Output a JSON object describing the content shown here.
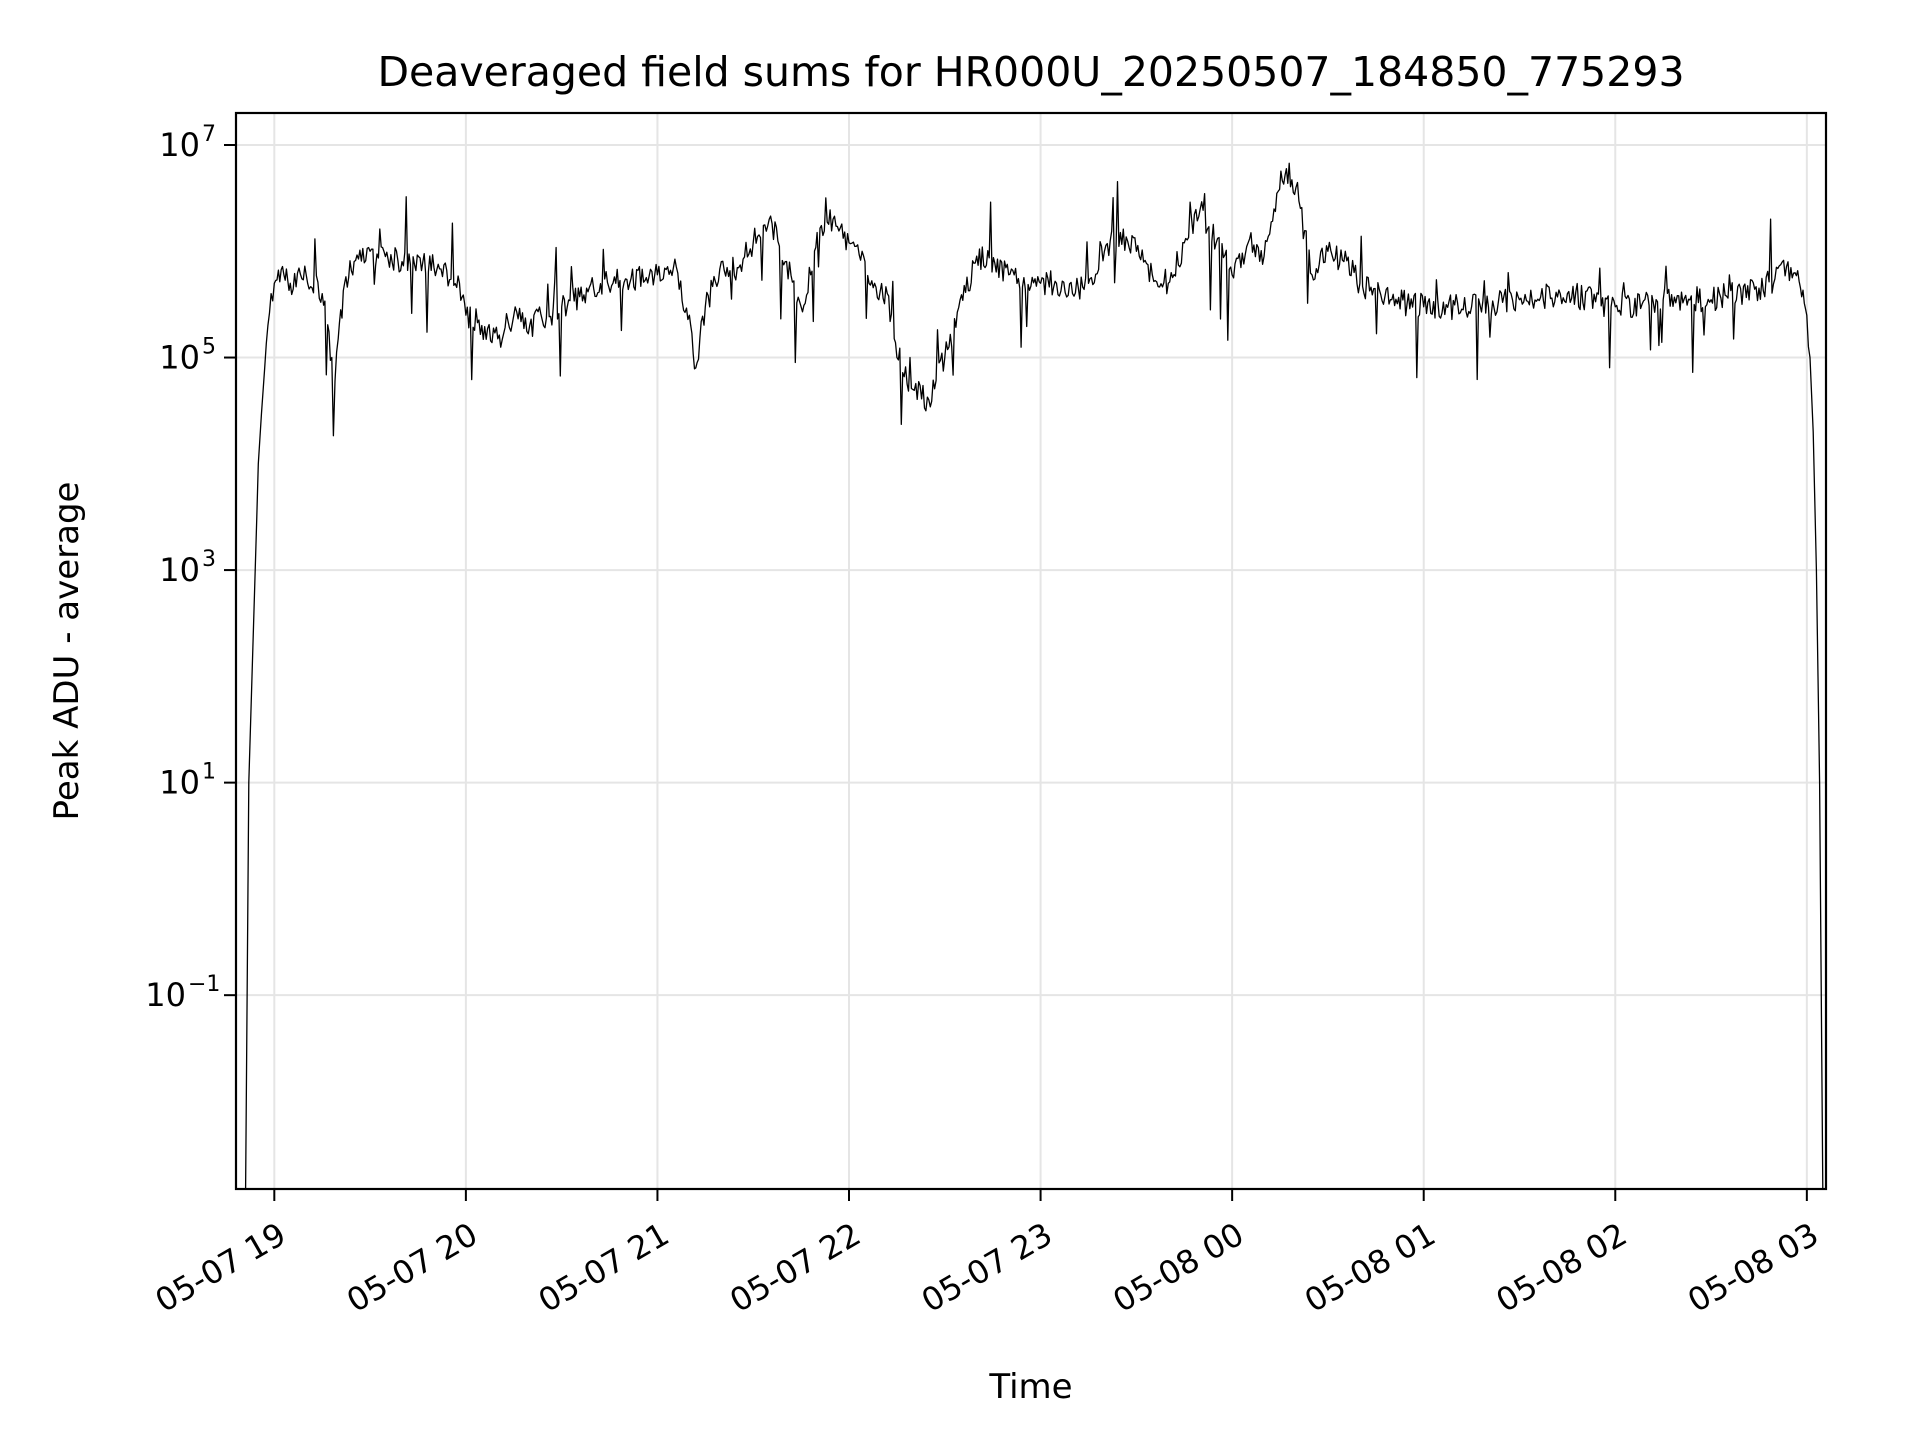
{
  "chart_data": {
    "type": "line",
    "title": "Deaveraged field sums for HR000U_20250507_184850_775293",
    "xlabel": "Time",
    "ylabel": "Peak ADU - average",
    "yscale": "log",
    "ylim": [
      0.0015,
      20000000
    ],
    "xlim": [
      "2025-05-07 18:48",
      "2025-05-08 03:06"
    ],
    "grid": true,
    "x_ticks": [
      {
        "t": "2025-05-07 19:00",
        "label": "05-07 19"
      },
      {
        "t": "2025-05-07 20:00",
        "label": "05-07 20"
      },
      {
        "t": "2025-05-07 21:00",
        "label": "05-07 21"
      },
      {
        "t": "2025-05-07 22:00",
        "label": "05-07 22"
      },
      {
        "t": "2025-05-07 23:00",
        "label": "05-07 23"
      },
      {
        "t": "2025-05-08 00:00",
        "label": "05-08 00"
      },
      {
        "t": "2025-05-08 01:00",
        "label": "05-08 01"
      },
      {
        "t": "2025-05-08 02:00",
        "label": "05-08 02"
      },
      {
        "t": "2025-05-08 03:00",
        "label": "05-08 03"
      }
    ],
    "y_ticks": [
      {
        "value": 0.1,
        "base": "10",
        "exp": "−1"
      },
      {
        "value": 10,
        "base": "10",
        "exp": "1"
      },
      {
        "value": 1000,
        "base": "10",
        "exp": "3"
      },
      {
        "value": 100000,
        "base": "10",
        "exp": "5"
      },
      {
        "value": 10000000,
        "base": "10",
        "exp": "7"
      }
    ],
    "series": [
      {
        "color": "#000000",
        "x": [
          "2025-05-07 18:51",
          "2025-05-07 18:52",
          "2025-05-07 18:53",
          "2025-05-07 18:54",
          "2025-05-07 18:55",
          "2025-05-07 18:56",
          "2025-05-07 18:57",
          "2025-05-07 18:58",
          "2025-05-07 18:59",
          "2025-05-07 19:00",
          "2025-05-07 19:03",
          "2025-05-07 19:05",
          "2025-05-07 19:10",
          "2025-05-07 19:15",
          "2025-05-07 19:18",
          "2025-05-07 19:19",
          "2025-05-07 19:20",
          "2025-05-07 19:22",
          "2025-05-07 19:25",
          "2025-05-07 19:30",
          "2025-05-07 19:40",
          "2025-05-07 19:50",
          "2025-05-07 19:58",
          "2025-05-07 20:00",
          "2025-05-07 20:05",
          "2025-05-07 20:10",
          "2025-05-07 20:15",
          "2025-05-07 20:20",
          "2025-05-07 20:30",
          "2025-05-07 20:40",
          "2025-05-07 20:50",
          "2025-05-07 21:00",
          "2025-05-07 21:05",
          "2025-05-07 21:10",
          "2025-05-07 21:12",
          "2025-05-07 21:15",
          "2025-05-07 21:20",
          "2025-05-07 21:25",
          "2025-05-07 21:30",
          "2025-05-07 21:35",
          "2025-05-07 21:40",
          "2025-05-07 21:45",
          "2025-05-07 21:48",
          "2025-05-07 21:50",
          "2025-05-07 21:55",
          "2025-05-07 22:00",
          "2025-05-07 22:05",
          "2025-05-07 22:08",
          "2025-05-07 22:12",
          "2025-05-07 22:15",
          "2025-05-07 22:20",
          "2025-05-07 22:25",
          "2025-05-07 22:30",
          "2025-05-07 22:40",
          "2025-05-07 22:50",
          "2025-05-07 23:00",
          "2025-05-07 23:05",
          "2025-05-07 23:10",
          "2025-05-07 23:15",
          "2025-05-07 23:20",
          "2025-05-07 23:25",
          "2025-05-07 23:30",
          "2025-05-07 23:35",
          "2025-05-07 23:40",
          "2025-05-07 23:45",
          "2025-05-07 23:50",
          "2025-05-07 23:55",
          "2025-05-08 00:00",
          "2025-05-08 00:05",
          "2025-05-08 00:10",
          "2025-05-08 00:14",
          "2025-05-08 00:17",
          "2025-05-08 00:20",
          "2025-05-08 00:25",
          "2025-05-08 00:30",
          "2025-05-08 00:35",
          "2025-05-08 00:40",
          "2025-05-08 00:50",
          "2025-05-08 01:00",
          "2025-05-08 01:15",
          "2025-05-08 01:30",
          "2025-05-08 01:45",
          "2025-05-08 02:00",
          "2025-05-08 02:15",
          "2025-05-08 02:30",
          "2025-05-08 02:45",
          "2025-05-08 02:50",
          "2025-05-08 02:55",
          "2025-05-08 02:58",
          "2025-05-08 03:00",
          "2025-05-08 03:01",
          "2025-05-08 03:02",
          "2025-05-08 03:03",
          "2025-05-08 03:04",
          "2025-05-08 03:05"
        ],
        "y": [
          0.0015,
          10,
          100,
          1000,
          10000,
          30000,
          80000,
          200000,
          400000,
          500000,
          600000,
          500000,
          600000,
          400000,
          100000,
          60000,
          150000,
          500000,
          800000,
          1000000,
          800000,
          700000,
          500000,
          250000,
          200000,
          150000,
          250000,
          200000,
          300000,
          450000,
          550000,
          600000,
          700000,
          250000,
          80000,
          300000,
          800000,
          700000,
          1200000,
          2000000,
          800000,
          300000,
          600000,
          1500000,
          2000000,
          1200000,
          800000,
          500000,
          400000,
          100000,
          50000,
          40000,
          100000,
          900000,
          600000,
          500000,
          500000,
          400000,
          500000,
          1000000,
          1500000,
          1000000,
          600000,
          500000,
          1200000,
          2500000,
          1200000,
          600000,
          1200000,
          900000,
          3500000,
          6000000,
          4000000,
          600000,
          1000000,
          800000,
          500000,
          350000,
          300000,
          300000,
          350000,
          400000,
          300000,
          350000,
          350000,
          450000,
          550000,
          700000,
          450000,
          250000,
          100000,
          20000,
          1000,
          10,
          0.0015
        ]
      }
    ]
  }
}
